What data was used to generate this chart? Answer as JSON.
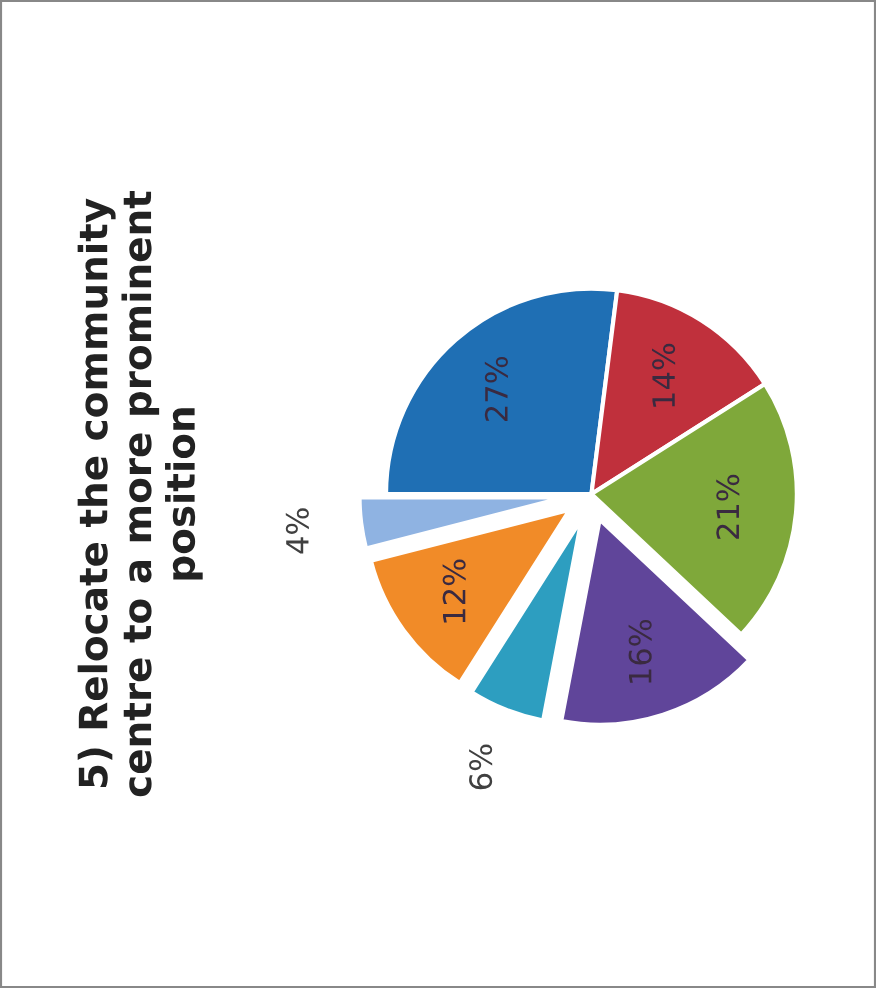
{
  "chart_data": {
    "type": "pie",
    "title": "5) Relocate the community\ncentre to a more prominent\nposition",
    "categories": [
      null,
      null,
      null,
      null,
      null,
      null,
      null
    ],
    "values": [
      27,
      14,
      21,
      16,
      6,
      12,
      4
    ],
    "value_labels": [
      "27%",
      "14%",
      "21%",
      "16%",
      "6%",
      "12%",
      "4%"
    ],
    "colors": [
      "#1f6fb4",
      "#c0303c",
      "#7fa83a",
      "#60459a",
      "#2d9ec0",
      "#f18b28",
      "#8fb3e2"
    ]
  }
}
